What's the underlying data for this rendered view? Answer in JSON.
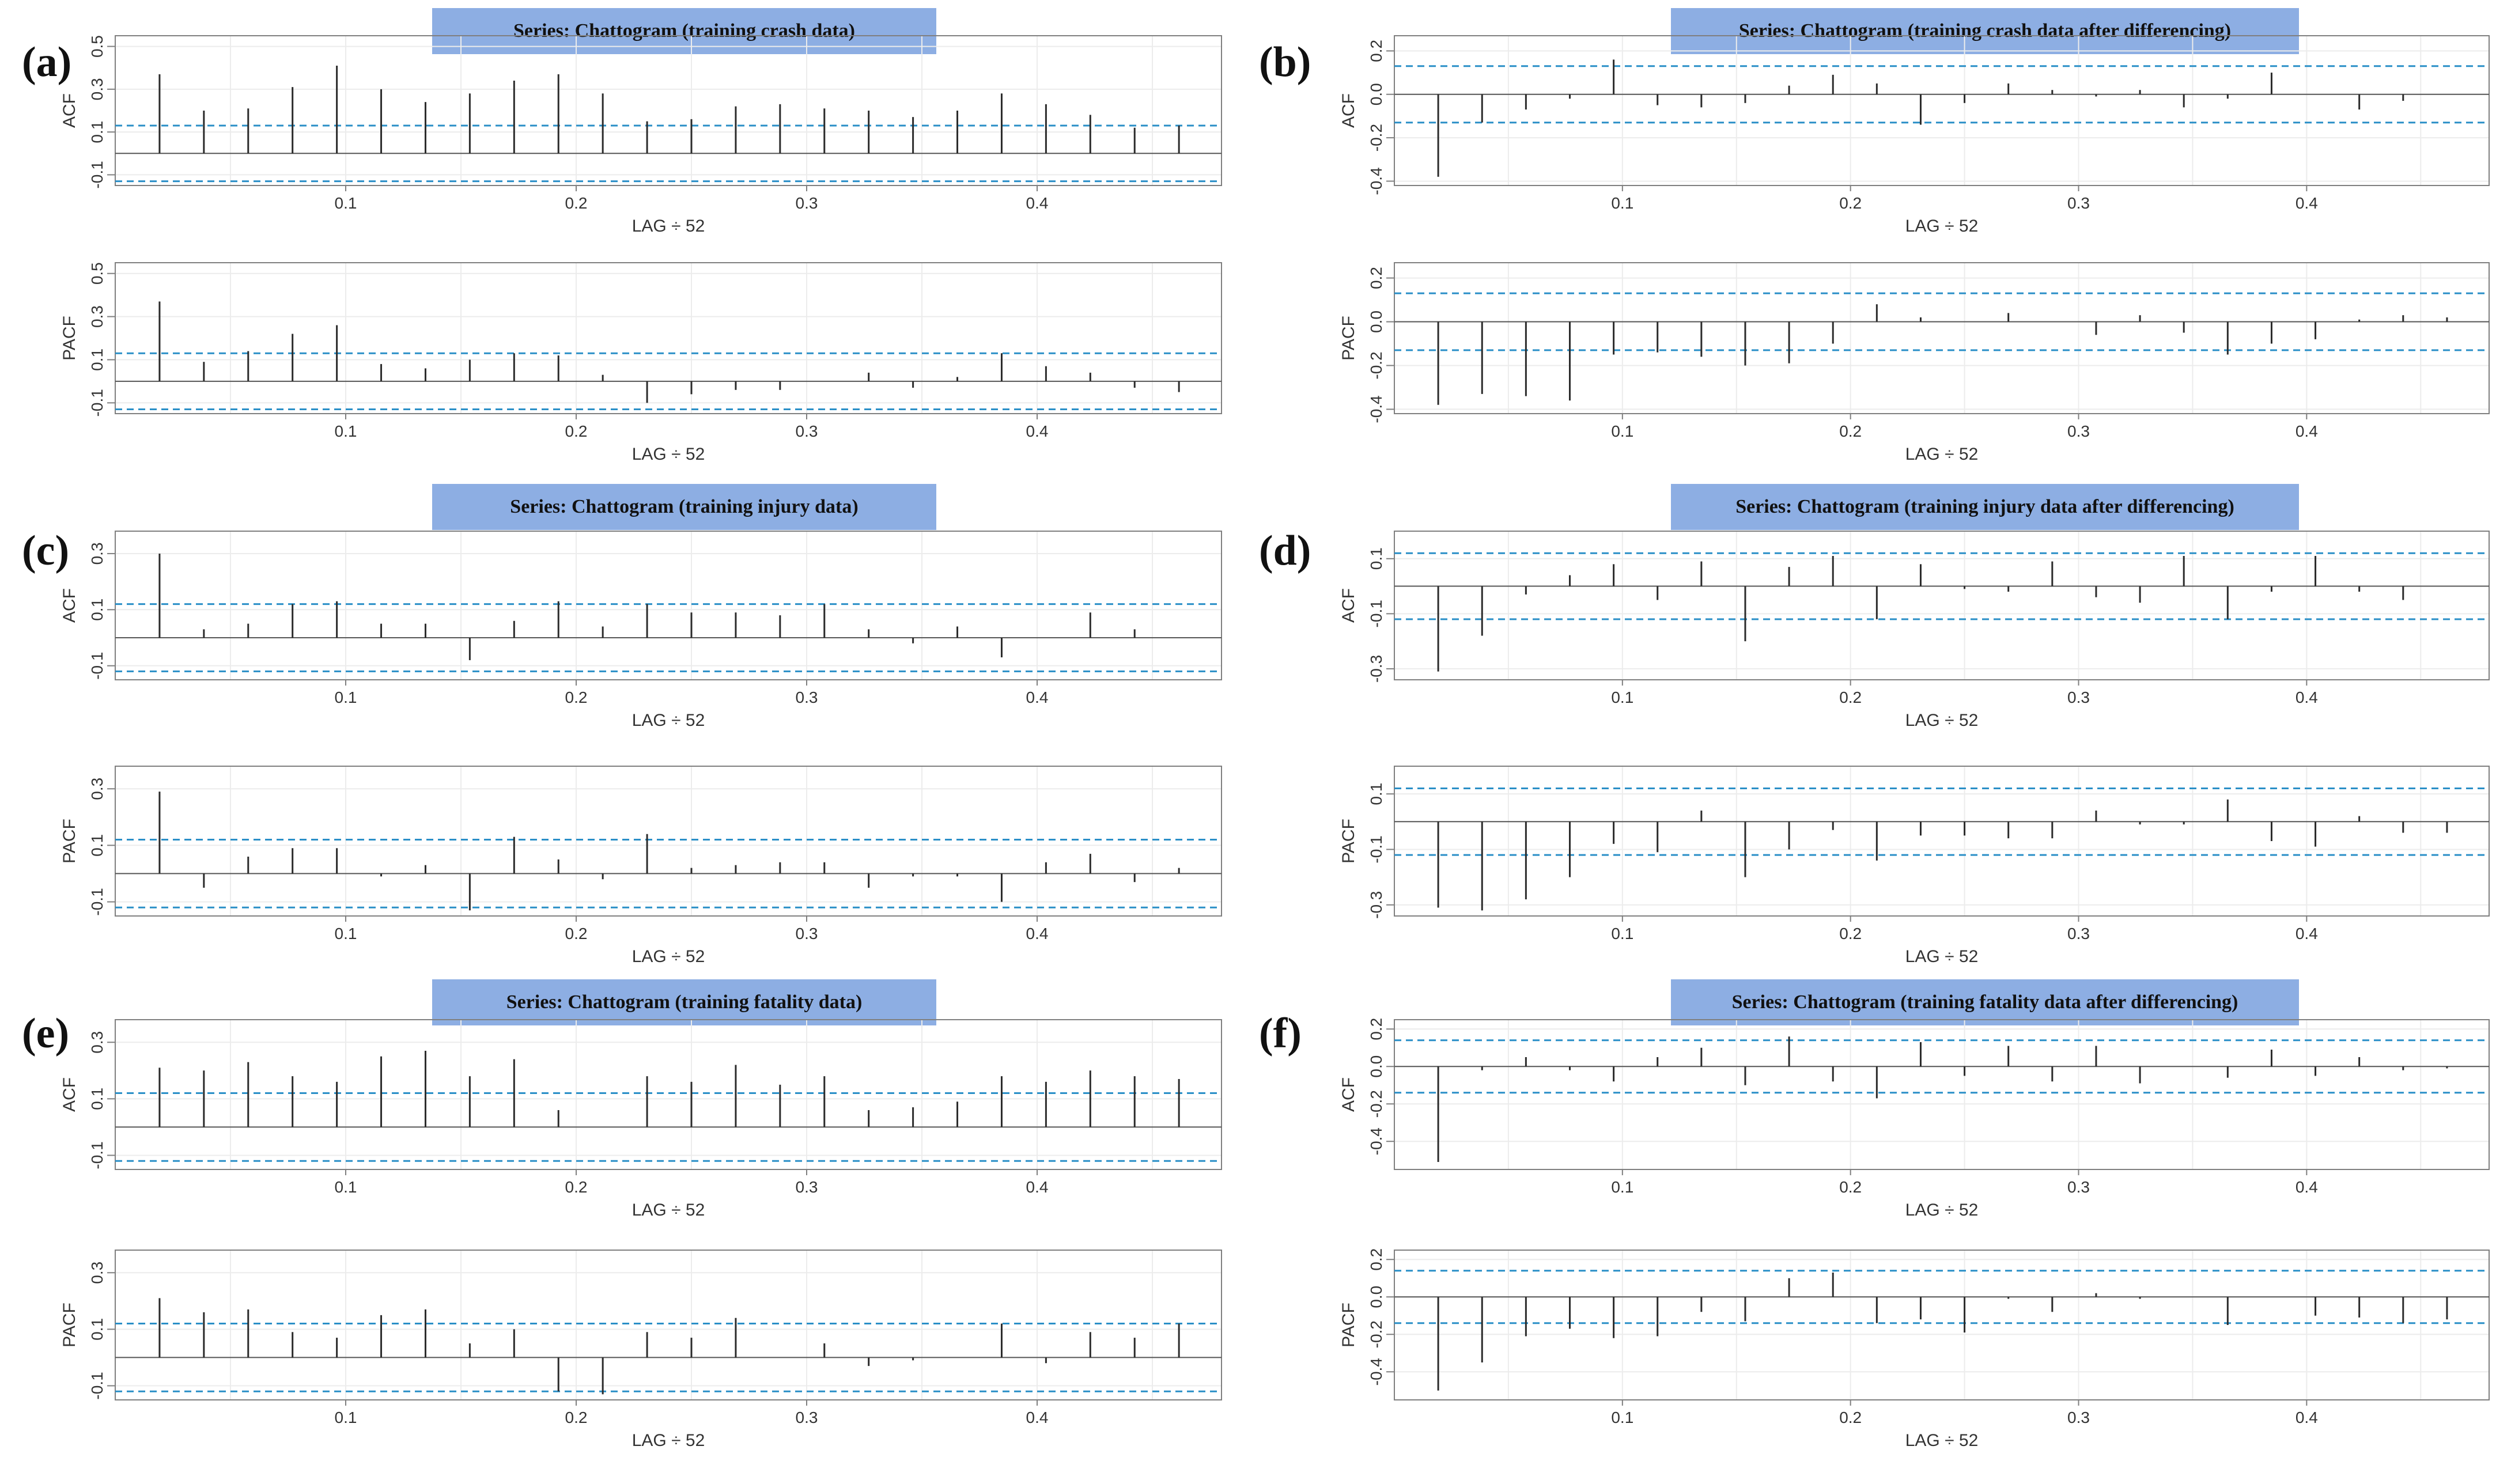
{
  "colors": {
    "title_bg": "#8daee3",
    "conf_line": "#2a8fc7",
    "spike": "#2b2b2b",
    "frame": "#7f7f7f",
    "grid": "#ececec",
    "text": "#333333"
  },
  "x_axis": {
    "xlim": [
      0.0,
      0.48
    ],
    "ticks": [
      "0.1",
      "0.2",
      "0.3",
      "0.4"
    ],
    "tick_values": [
      0.1,
      0.2,
      0.3,
      0.4
    ]
  },
  "chart_data": [
    {
      "panel": "(a)",
      "title": "Series: Chattogram (training crash data)",
      "plots": [
        {
          "ylabel": "ACF",
          "xlabel": "LAG ÷ 52",
          "type": "bar",
          "ylim": [
            -0.15,
            0.55
          ],
          "yticks": [
            "-0.1",
            "0.1",
            "0.3",
            "0.5"
          ],
          "ytick_values": [
            -0.1,
            0.1,
            0.3,
            0.5
          ],
          "conf": 0.13,
          "values": [
            0.37,
            0.2,
            0.21,
            0.31,
            0.41,
            0.3,
            0.24,
            0.28,
            0.34,
            0.37,
            0.28,
            0.15,
            0.16,
            0.22,
            0.23,
            0.21,
            0.2,
            0.17,
            0.2,
            0.28,
            0.23,
            0.18,
            0.12,
            0.13
          ]
        },
        {
          "ylabel": "PACF",
          "xlabel": "LAG ÷ 52",
          "type": "bar",
          "ylim": [
            -0.15,
            0.55
          ],
          "yticks": [
            "-0.1",
            "0.1",
            "0.3",
            "0.5"
          ],
          "ytick_values": [
            -0.1,
            0.1,
            0.3,
            0.5
          ],
          "conf": 0.13,
          "values": [
            0.37,
            0.09,
            0.14,
            0.22,
            0.26,
            0.08,
            0.06,
            0.1,
            0.13,
            0.12,
            0.03,
            -0.1,
            -0.06,
            -0.04,
            -0.04,
            0.0,
            0.04,
            -0.03,
            0.02,
            0.13,
            0.07,
            0.04,
            -0.03,
            -0.05
          ]
        }
      ]
    },
    {
      "panel": "(b)",
      "title": "Series: Chattogram (training  crash  data after differencing)",
      "plots": [
        {
          "ylabel": "ACF",
          "xlabel": "LAG ÷ 52",
          "type": "bar",
          "ylim": [
            -0.42,
            0.27
          ],
          "yticks": [
            "-0.4",
            "-0.2",
            "0.0",
            "0.2"
          ],
          "ytick_values": [
            -0.4,
            -0.2,
            0.0,
            0.2
          ],
          "conf": 0.13,
          "values": [
            -0.38,
            -0.13,
            -0.07,
            -0.02,
            0.16,
            -0.05,
            -0.06,
            -0.04,
            0.04,
            0.09,
            0.05,
            -0.14,
            -0.04,
            0.05,
            0.02,
            -0.01,
            0.02,
            -0.06,
            -0.02,
            0.1,
            0.0,
            -0.07,
            -0.03
          ]
        },
        {
          "ylabel": "PACF",
          "xlabel": "LAG ÷ 52",
          "type": "bar",
          "ylim": [
            -0.42,
            0.27
          ],
          "yticks": [
            "-0.4",
            "-0.2",
            "0.0",
            "0.2"
          ],
          "ytick_values": [
            -0.4,
            -0.2,
            0.0,
            0.2
          ],
          "conf": 0.13,
          "values": [
            -0.38,
            -0.33,
            -0.34,
            -0.36,
            -0.15,
            -0.14,
            -0.16,
            -0.2,
            -0.19,
            -0.1,
            0.08,
            0.02,
            0.0,
            0.04,
            0.0,
            -0.06,
            0.03,
            -0.05,
            -0.15,
            -0.1,
            -0.08,
            0.01,
            0.03,
            0.02
          ]
        }
      ]
    },
    {
      "panel": "(c)",
      "title": "Series: Chattogram (training injury data)",
      "plots": [
        {
          "ylabel": "ACF",
          "xlabel": "LAG ÷ 52",
          "type": "bar",
          "ylim": [
            -0.15,
            0.38
          ],
          "yticks": [
            "-0.1",
            "0.1",
            "0.3"
          ],
          "ytick_values": [
            -0.1,
            0.1,
            0.3
          ],
          "conf": 0.12,
          "values": [
            0.3,
            0.03,
            0.05,
            0.12,
            0.13,
            0.05,
            0.05,
            -0.08,
            0.06,
            0.13,
            0.04,
            0.12,
            0.09,
            0.09,
            0.08,
            0.12,
            0.03,
            -0.02,
            0.04,
            -0.07,
            0.0,
            0.09,
            0.03
          ]
        },
        {
          "ylabel": "PACF",
          "xlabel": "LAG ÷ 52",
          "type": "bar",
          "ylim": [
            -0.15,
            0.38
          ],
          "yticks": [
            "-0.1",
            "0.1",
            "0.3"
          ],
          "ytick_values": [
            -0.1,
            0.1,
            0.3
          ],
          "conf": 0.12,
          "values": [
            0.29,
            -0.05,
            0.06,
            0.09,
            0.09,
            -0.01,
            0.03,
            -0.13,
            0.13,
            0.05,
            -0.02,
            0.14,
            0.02,
            0.03,
            0.04,
            0.04,
            -0.05,
            -0.01,
            -0.01,
            -0.1,
            0.04,
            0.07,
            -0.03,
            0.02
          ]
        }
      ]
    },
    {
      "panel": "(d)",
      "title": "Series: Chattogram (training injury data after differencing)",
      "plots": [
        {
          "ylabel": "ACF",
          "xlabel": "LAG ÷ 52",
          "type": "bar",
          "ylim": [
            -0.34,
            0.2
          ],
          "yticks": [
            "-0.3",
            "-0.1",
            "0.1"
          ],
          "ytick_values": [
            -0.3,
            -0.1,
            0.1
          ],
          "conf": 0.12,
          "values": [
            -0.31,
            -0.18,
            -0.03,
            0.04,
            0.08,
            -0.05,
            0.09,
            -0.2,
            0.07,
            0.11,
            -0.12,
            0.08,
            -0.01,
            -0.02,
            0.09,
            -0.04,
            -0.06,
            0.11,
            -0.12,
            -0.02,
            0.11,
            -0.02,
            -0.05
          ]
        },
        {
          "ylabel": "PACF",
          "xlabel": "LAG ÷ 52",
          "type": "bar",
          "ylim": [
            -0.34,
            0.2
          ],
          "yticks": [
            "-0.3",
            "-0.1",
            "0.1"
          ],
          "ytick_values": [
            -0.3,
            -0.1,
            0.1
          ],
          "conf": 0.12,
          "values": [
            -0.31,
            -0.32,
            -0.28,
            -0.2,
            -0.08,
            -0.11,
            0.04,
            -0.2,
            -0.1,
            -0.03,
            -0.14,
            -0.05,
            -0.05,
            -0.06,
            -0.06,
            0.04,
            -0.01,
            -0.01,
            0.08,
            -0.07,
            -0.09,
            0.02,
            -0.04,
            -0.04
          ]
        }
      ]
    },
    {
      "panel": "(e)",
      "title": "Series: Chattogram (training fatality data)",
      "plots": [
        {
          "ylabel": "ACF",
          "xlabel": "LAG ÷ 52",
          "type": "bar",
          "ylim": [
            -0.15,
            0.38
          ],
          "yticks": [
            "-0.1",
            "0.1",
            "0.3"
          ],
          "ytick_values": [
            -0.1,
            0.1,
            0.3
          ],
          "conf": 0.12,
          "values": [
            0.21,
            0.2,
            0.23,
            0.18,
            0.16,
            0.25,
            0.27,
            0.18,
            0.24,
            0.06,
            0.0,
            0.18,
            0.16,
            0.22,
            0.15,
            0.18,
            0.06,
            0.07,
            0.09,
            0.18,
            0.16,
            0.2,
            0.18,
            0.17
          ]
        },
        {
          "ylabel": "PACF",
          "xlabel": "LAG ÷ 52",
          "type": "bar",
          "ylim": [
            -0.15,
            0.38
          ],
          "yticks": [
            "-0.1",
            "0.1",
            "0.3"
          ],
          "ytick_values": [
            -0.1,
            0.1,
            0.3
          ],
          "conf": 0.12,
          "values": [
            0.21,
            0.16,
            0.17,
            0.09,
            0.07,
            0.15,
            0.17,
            0.05,
            0.1,
            -0.12,
            -0.13,
            0.09,
            0.07,
            0.14,
            0.0,
            0.05,
            -0.03,
            -0.01,
            0.0,
            0.12,
            -0.02,
            0.09,
            0.07,
            0.12
          ]
        }
      ]
    },
    {
      "panel": "(f)",
      "title": "Series: Chattogram (training fatality data after differencing)",
      "plots": [
        {
          "ylabel": "ACF",
          "xlabel": "LAG ÷ 52",
          "type": "bar",
          "ylim": [
            -0.55,
            0.25
          ],
          "yticks": [
            "-0.4",
            "-0.2",
            "0.0",
            "0.2"
          ],
          "ytick_values": [
            -0.4,
            -0.2,
            0.0,
            0.2
          ],
          "conf": 0.14,
          "values": [
            -0.51,
            -0.02,
            0.05,
            -0.02,
            -0.08,
            0.05,
            0.1,
            -0.1,
            0.16,
            -0.08,
            -0.17,
            0.13,
            -0.05,
            0.11,
            -0.08,
            0.11,
            -0.09,
            0.0,
            -0.06,
            0.09,
            -0.05,
            0.05,
            -0.02,
            -0.01
          ]
        },
        {
          "ylabel": "PACF",
          "xlabel": "LAG ÷ 52",
          "type": "bar",
          "ylim": [
            -0.55,
            0.25
          ],
          "yticks": [
            "-0.4",
            "-0.2",
            "0.0",
            "0.2"
          ],
          "ytick_values": [
            -0.4,
            -0.2,
            0.0,
            0.2
          ],
          "conf": 0.14,
          "values": [
            -0.5,
            -0.35,
            -0.21,
            -0.17,
            -0.22,
            -0.21,
            -0.08,
            -0.13,
            0.1,
            0.13,
            -0.14,
            -0.12,
            -0.19,
            -0.01,
            -0.08,
            0.02,
            -0.01,
            0.0,
            -0.15,
            0.0,
            -0.1,
            -0.11,
            -0.14,
            -0.12
          ]
        }
      ]
    }
  ]
}
